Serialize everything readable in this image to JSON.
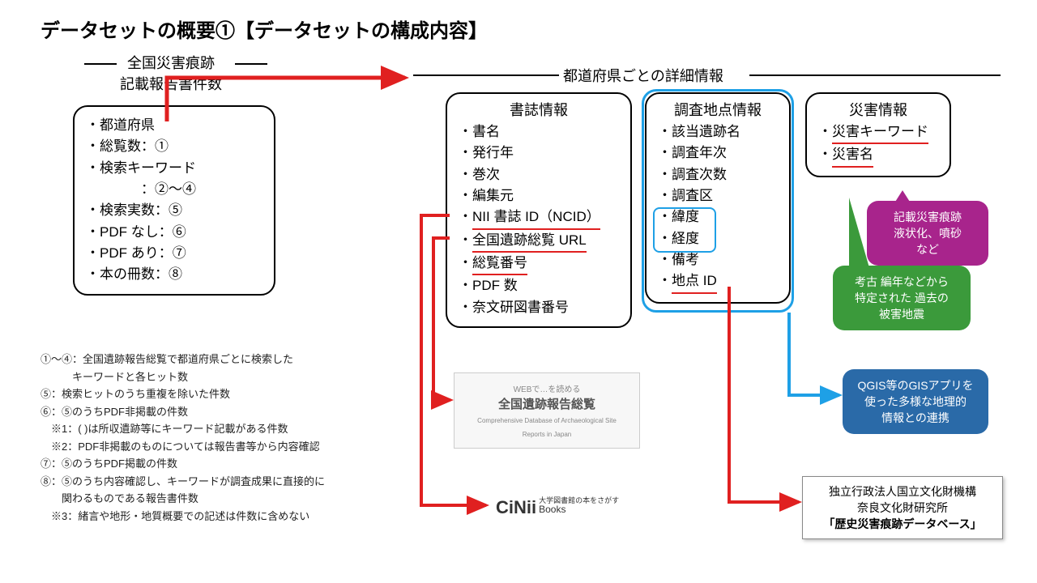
{
  "title": "データセットの概要①【データセットの構成内容】",
  "sections": {
    "left_title": "全国災害痕跡\n記載報告書件数",
    "right_title": "都道府県ごとの詳細情報"
  },
  "left_box": {
    "items": [
      "・都道府県",
      "・総覧数：①",
      "・検索キーワード",
      "　　　　：②～④",
      "・検索実数：⑤",
      "・PDF なし：⑥",
      "・PDF あり：⑦",
      "・本の冊数：⑧"
    ]
  },
  "biblio_box": {
    "header": "書誌情報",
    "items": [
      "・書名",
      "・発行年",
      "・巻次",
      "・編集元",
      "・<span class=\"ul-red\">NII 書誌 ID（NCID）</span>",
      "・<span class=\"ul-red\">全国遺跡総覧 URL</span>",
      "・<span class=\"ul-red\">総覧番号</span>",
      "・PDF 数",
      "・奈文研図書番号"
    ]
  },
  "survey_box": {
    "header": "調査地点情報",
    "items": [
      "・該当遺跡名",
      "・調査年次",
      "・調査次数",
      "・調査区",
      "・緯度",
      "・経度",
      "・備考",
      "・<span class=\"ul-red\">地点 ID</span>"
    ]
  },
  "hazard_box": {
    "header": "災害情報",
    "items": [
      "・<span class=\"ul-red\">災害キーワード</span>",
      "・<span class=\"ul-red\">災害名</span>"
    ]
  },
  "notes": [
    "①～④：全国遺跡報告総覧で都道府県ごとに検索した",
    "　　　キーワードと各ヒット数",
    "⑤：検索ヒットのうち重複を除いた件数",
    "⑥：⑤のうちPDF非掲載の件数",
    "　※1：( )は所収遺跡等にキーワード記載がある件数",
    "　※2：PDF非掲載のものについては報告書等から内容確認",
    "⑦：⑤のうちPDF掲載の件数",
    "⑧：⑤のうち内容確認し、キーワードが調査成果に直接的に",
    "　　関わるものである報告書件数",
    "　※3：緒言や地形・地質概要での記述は件数に含めない"
  ],
  "callout_magenta": "記載災害痕跡\n液状化、噴砂\nなど",
  "callout_green": "考古 編年などから\n特定された 過去の\n被害地震",
  "callout_blue": "QGIS等のGISアプリを\n使った多様な地理的\n情報との連携",
  "img_label": "全国遺跡報告総覧",
  "cinii_label": "CiNii",
  "cinii_sub": "大学図書館の本をさがす",
  "cinii_books": "Books",
  "tailbox": {
    "l1": "独立行政法人国立文化財機構",
    "l2": "奈良文化財研究所",
    "l3": "「歴史災害痕跡データベース」"
  },
  "colors": {
    "arrow_red": "#e02020",
    "arrow_blue": "#1ea0e6"
  }
}
